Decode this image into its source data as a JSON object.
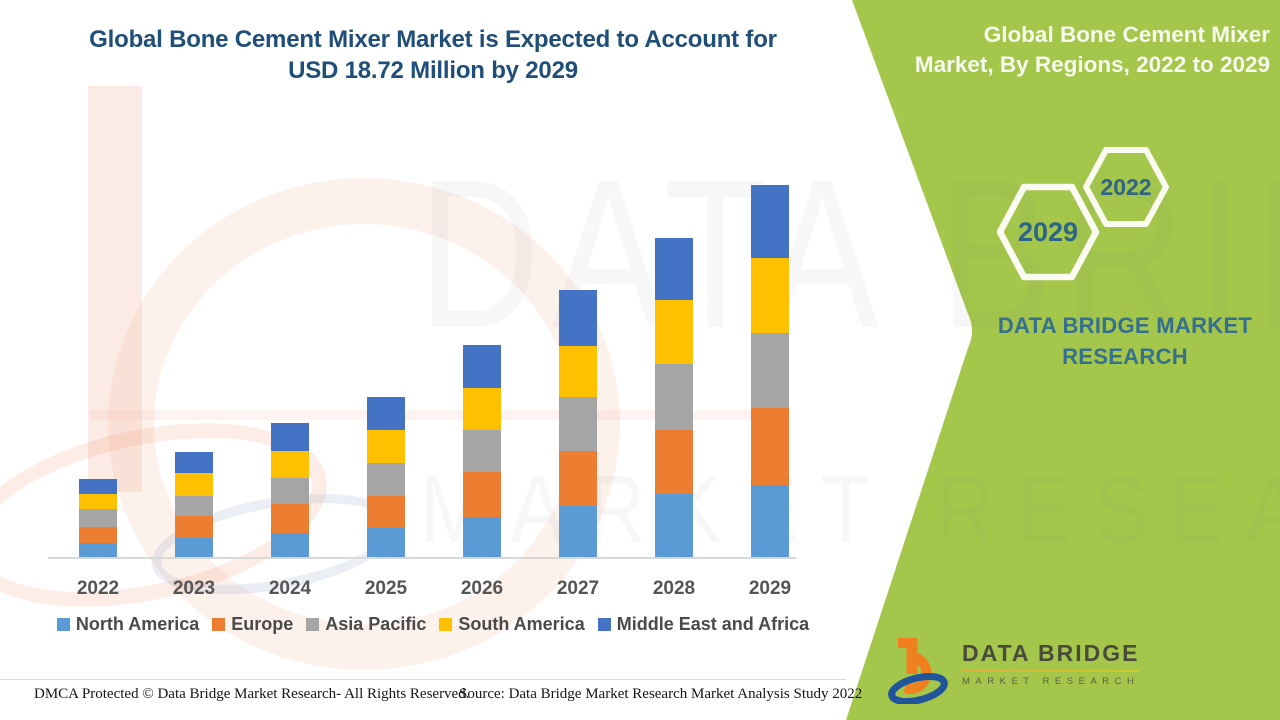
{
  "page": {
    "main_title_line1": "Global Bone Cement Mixer Market is Expected to Account for",
    "main_title_line2": "USD 18.72 Million by 2029",
    "footer_left": "DMCA Protected © Data Bridge Market Research- All Rights Reserved.",
    "footer_right": "Source: Data Bridge Market Research Market Analysis Study 2022"
  },
  "side_panel": {
    "title_line1": "Global Bone Cement Mixer",
    "title_line2": "Market, By Regions, 2022 to 2029",
    "hexagons": [
      {
        "label": "2029"
      },
      {
        "label": "2022"
      }
    ],
    "brand_line1": "DATA BRIDGE MARKET",
    "brand_line2": "RESEARCH"
  },
  "footer_logo": {
    "name": "DATA BRIDGE",
    "subtitle": "MARKET RESEARCH"
  },
  "watermark": {
    "text1": "DATA BRIDGE",
    "text2": "MARKET RESEARCH"
  },
  "colors": {
    "title_navy": "#1F4E79",
    "green": "#A4C74B",
    "hex_year": "#2E6586",
    "hex_stroke": "#FAFCF2",
    "brand_teal": "#35708E",
    "axis_label": "#555555",
    "legend_label": "#4A4A4A"
  },
  "chart_data": {
    "type": "bar",
    "stacked": true,
    "title": "Global Bone Cement Mixer Market is Expected to Account for USD 18.72 Million by 2029",
    "unit": "USD Million",
    "categories": [
      "2022",
      "2023",
      "2024",
      "2025",
      "2026",
      "2027",
      "2028",
      "2029"
    ],
    "series": [
      {
        "name": "North America",
        "color": "#5B9BD5",
        "values": [
          0.82,
          1.03,
          1.32,
          1.57,
          2.12,
          2.67,
          3.25,
          3.7
        ]
      },
      {
        "name": "Europe",
        "color": "#ED7D31",
        "values": [
          0.77,
          1.12,
          1.43,
          1.58,
          2.25,
          2.73,
          3.2,
          3.86
        ]
      },
      {
        "name": "Asia Pacific",
        "color": "#A5A5A5",
        "values": [
          0.9,
          1.0,
          1.31,
          1.67,
          2.08,
          2.72,
          3.3,
          3.75
        ]
      },
      {
        "name": "South America",
        "color": "#FFC000",
        "values": [
          0.75,
          1.17,
          1.35,
          1.63,
          2.12,
          2.53,
          3.2,
          3.75
        ]
      },
      {
        "name": "Middle East and Africa",
        "color": "#4472C4",
        "values": [
          0.75,
          1.05,
          1.37,
          1.63,
          2.13,
          2.8,
          3.08,
          3.66
        ]
      }
    ],
    "totals": [
      3.99,
      5.37,
      6.78,
      8.08,
      10.7,
      13.45,
      16.03,
      18.72
    ],
    "value_axis_visible": false,
    "grid": false,
    "legend_position": "bottom"
  }
}
